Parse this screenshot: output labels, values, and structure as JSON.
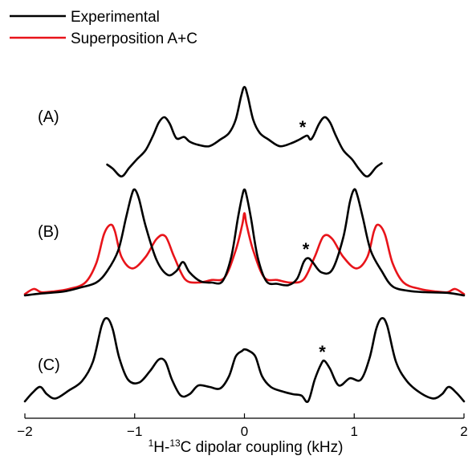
{
  "chart_data": {
    "type": "line",
    "xlabel_parts": [
      "1",
      "H-",
      "13",
      "C dipolar coupling (kHz)"
    ],
    "xlim": [
      -2,
      2
    ],
    "x_ticks": [
      -2,
      -1,
      0,
      1,
      2
    ],
    "x_tick_labels": [
      "−2",
      "−1",
      "0",
      "1",
      "2"
    ],
    "grid": false,
    "legend_location": "top-left",
    "legend": [
      {
        "label": "Experimental",
        "color": "#000000"
      },
      {
        "label": "Superposition A+C",
        "color": "#e8141a"
      }
    ],
    "panels": [
      {
        "label": "(A)",
        "series": [
          {
            "name": "Experimental",
            "color": "#000000",
            "x": [
              -1.25,
              -1.2,
              -1.12,
              -1.05,
              -0.98,
              -0.9,
              -0.83,
              -0.78,
              -0.73,
              -0.68,
              -0.62,
              -0.55,
              -0.5,
              -0.42,
              -0.32,
              -0.22,
              -0.14,
              -0.08,
              -0.03,
              0,
              0.03,
              0.08,
              0.14,
              0.22,
              0.32,
              0.42,
              0.5,
              0.57,
              0.6,
              0.63,
              0.68,
              0.73,
              0.78,
              0.83,
              0.9,
              0.98,
              1.05,
              1.12,
              1.2,
              1.25
            ],
            "y": [
              0.28,
              0.22,
              0.1,
              0.23,
              0.36,
              0.5,
              0.73,
              0.92,
              1.0,
              0.9,
              0.68,
              0.7,
              0.63,
              0.58,
              0.56,
              0.66,
              0.76,
              0.96,
              1.32,
              1.46,
              1.32,
              0.96,
              0.76,
              0.66,
              0.56,
              0.6,
              0.66,
              0.72,
              0.66,
              0.72,
              0.9,
              1.0,
              0.92,
              0.73,
              0.5,
              0.36,
              0.2,
              0.1,
              0.24,
              0.3
            ]
          }
        ],
        "annotation": {
          "text": "*",
          "x": 0.53
        }
      },
      {
        "label": "(B)",
        "series": [
          {
            "name": "Experimental",
            "color": "#000000",
            "x": [
              -2,
              -1.85,
              -1.65,
              -1.5,
              -1.35,
              -1.25,
              -1.15,
              -1.08,
              -1.03,
              -1.0,
              -0.96,
              -0.9,
              -0.8,
              -0.7,
              -0.62,
              -0.56,
              -0.5,
              -0.4,
              -0.3,
              -0.2,
              -0.12,
              -0.06,
              -0.02,
              0,
              0.02,
              0.06,
              0.12,
              0.2,
              0.3,
              0.4,
              0.48,
              0.54,
              0.58,
              0.62,
              0.7,
              0.8,
              0.9,
              0.96,
              1.0,
              1.03,
              1.08,
              1.15,
              1.25,
              1.35,
              1.5,
              1.65,
              1.85,
              2
            ],
            "y": [
              0.0,
              0.03,
              0.06,
              0.12,
              0.2,
              0.38,
              0.7,
              1.2,
              1.55,
              1.65,
              1.5,
              1.08,
              0.55,
              0.32,
              0.38,
              0.52,
              0.36,
              0.22,
              0.2,
              0.22,
              0.6,
              1.2,
              1.55,
              1.65,
              1.55,
              1.2,
              0.6,
              0.22,
              0.18,
              0.16,
              0.26,
              0.52,
              0.58,
              0.52,
              0.36,
              0.4,
              0.9,
              1.45,
              1.65,
              1.55,
              1.2,
              0.7,
              0.38,
              0.14,
              0.07,
              0.05,
              0.04,
              0.0
            ]
          },
          {
            "name": "Superposition A+C",
            "color": "#e8141a",
            "x": [
              -2,
              -1.92,
              -1.85,
              -1.75,
              -1.6,
              -1.45,
              -1.35,
              -1.28,
              -1.22,
              -1.18,
              -1.12,
              -1.02,
              -0.9,
              -0.8,
              -0.72,
              -0.64,
              -0.54,
              -0.42,
              -0.3,
              -0.18,
              -0.08,
              -0.02,
              0,
              0.02,
              0.08,
              0.18,
              0.3,
              0.42,
              0.54,
              0.64,
              0.72,
              0.8,
              0.9,
              1.02,
              1.12,
              1.18,
              1.22,
              1.28,
              1.35,
              1.45,
              1.6,
              1.75,
              1.85,
              1.92,
              2
            ],
            "y": [
              0.02,
              0.1,
              0.05,
              0.06,
              0.1,
              0.2,
              0.5,
              0.95,
              1.1,
              1.0,
              0.6,
              0.42,
              0.6,
              0.88,
              0.92,
              0.6,
              0.25,
              0.2,
              0.24,
              0.28,
              0.7,
              1.1,
              1.28,
              1.1,
              0.7,
              0.28,
              0.24,
              0.2,
              0.25,
              0.6,
              0.92,
              0.88,
              0.6,
              0.42,
              0.6,
              1.0,
              1.1,
              0.95,
              0.5,
              0.2,
              0.1,
              0.06,
              0.05,
              0.1,
              0.02
            ]
          }
        ],
        "annotation": {
          "text": "*",
          "x": 0.56
        }
      },
      {
        "label": "(C)",
        "series": [
          {
            "name": "Experimental",
            "color": "#000000",
            "x": [
              -2,
              -1.93,
              -1.86,
              -1.8,
              -1.72,
              -1.6,
              -1.48,
              -1.38,
              -1.3,
              -1.25,
              -1.2,
              -1.14,
              -1.06,
              -0.96,
              -0.86,
              -0.78,
              -0.72,
              -0.66,
              -0.58,
              -0.5,
              -0.42,
              -0.32,
              -0.22,
              -0.14,
              -0.08,
              -0.02,
              0.0,
              0.04,
              0.1,
              0.16,
              0.24,
              0.34,
              0.44,
              0.52,
              0.58,
              0.64,
              0.7,
              0.73,
              0.78,
              0.86,
              0.96,
              1.06,
              1.14,
              1.2,
              1.25,
              1.3,
              1.38,
              1.48,
              1.6,
              1.72,
              1.8,
              1.86,
              1.93,
              2
            ],
            "y": [
              0.0,
              0.12,
              0.2,
              0.1,
              0.04,
              0.15,
              0.28,
              0.55,
              1.05,
              1.15,
              1.0,
              0.6,
              0.3,
              0.26,
              0.42,
              0.58,
              0.55,
              0.3,
              0.08,
              0.1,
              0.22,
              0.2,
              0.18,
              0.35,
              0.62,
              0.7,
              0.72,
              0.7,
              0.62,
              0.35,
              0.2,
              0.14,
              0.1,
              0.08,
              0.0,
              0.3,
              0.52,
              0.56,
              0.45,
              0.22,
              0.32,
              0.3,
              0.6,
              1.0,
              1.15,
              1.05,
              0.55,
              0.28,
              0.12,
              0.04,
              0.1,
              0.2,
              0.12,
              0.0
            ]
          }
        ],
        "annotation": {
          "text": "*",
          "x": 0.71
        }
      }
    ]
  }
}
